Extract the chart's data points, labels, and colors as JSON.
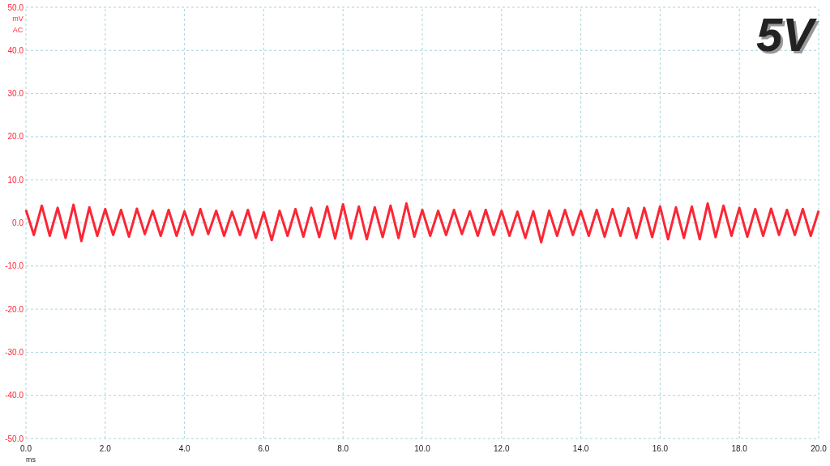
{
  "chart_data": {
    "type": "line",
    "title": "5V",
    "xlabel": "ms",
    "ylabel": "mV AC",
    "xlim": [
      0,
      20
    ],
    "ylim": [
      -50,
      50
    ],
    "xticks": [
      {
        "value": 0,
        "label": "0.0"
      },
      {
        "value": 2,
        "label": "2.0"
      },
      {
        "value": 4,
        "label": "4.0"
      },
      {
        "value": 6,
        "label": "6.0"
      },
      {
        "value": 8,
        "label": "8.0"
      },
      {
        "value": 10,
        "label": "10.0"
      },
      {
        "value": 12,
        "label": "12.0"
      },
      {
        "value": 14,
        "label": "14.0"
      },
      {
        "value": 16,
        "label": "16.0"
      },
      {
        "value": 18,
        "label": "18.0"
      },
      {
        "value": 20,
        "label": "20.0"
      }
    ],
    "yticks": [
      {
        "value": -50,
        "label": "-50.0"
      },
      {
        "value": -40,
        "label": "-40.0"
      },
      {
        "value": -30,
        "label": "-30.0"
      },
      {
        "value": -20,
        "label": "-20.0"
      },
      {
        "value": -10,
        "label": "-10.0"
      },
      {
        "value": 0,
        "label": "0.0"
      },
      {
        "value": 10,
        "label": "10.0"
      },
      {
        "value": 20,
        "label": "20.0"
      },
      {
        "value": 30,
        "label": "30.0"
      },
      {
        "value": 40,
        "label": "40.0"
      },
      {
        "value": 50,
        "label": "50.0"
      }
    ],
    "grid": true,
    "marker": "none",
    "line_style": "solid",
    "series": [
      {
        "color": "#fc2635",
        "x": [
          0,
          0.2,
          0.4,
          0.6,
          0.8,
          1,
          1.2,
          1.4,
          1.6,
          1.8,
          2,
          2.2,
          2.4,
          2.6,
          2.8,
          3,
          3.2,
          3.4,
          3.6,
          3.8,
          4,
          4.2,
          4.4,
          4.6,
          4.8,
          5,
          5.2,
          5.4,
          5.6,
          5.8,
          6,
          6.2,
          6.4,
          6.6,
          6.8,
          7,
          7.2,
          7.4,
          7.6,
          7.8,
          8,
          8.2,
          8.4,
          8.6,
          8.8,
          9,
          9.2,
          9.4,
          9.6,
          9.8,
          10,
          10.2,
          10.4,
          10.6,
          10.8,
          11,
          11.2,
          11.4,
          11.6,
          11.8,
          12,
          12.2,
          12.4,
          12.6,
          12.8,
          13,
          13.2,
          13.4,
          13.6,
          13.8,
          14,
          14.2,
          14.4,
          14.6,
          14.8,
          15,
          15.2,
          15.4,
          15.6,
          15.8,
          16,
          16.2,
          16.4,
          16.6,
          16.8,
          17,
          17.2,
          17.4,
          17.6,
          17.8,
          18,
          18.2,
          18.4,
          18.6,
          18.8,
          19,
          19.2,
          19.4,
          19.6,
          19.8,
          20
        ],
        "values": [
          3.0,
          -2.8,
          4.0,
          -3.0,
          3.5,
          -3.5,
          4.2,
          -4.2,
          3.6,
          -3.0,
          3.2,
          -2.8,
          3.0,
          -3.2,
          3.3,
          -2.6,
          2.8,
          -3.0,
          3.0,
          -3.0,
          2.7,
          -2.8,
          3.2,
          -2.6,
          2.8,
          -3.0,
          2.6,
          -2.8,
          3.0,
          -3.5,
          2.5,
          -4.0,
          2.8,
          -3.0,
          3.2,
          -3.2,
          3.5,
          -3.3,
          3.8,
          -3.6,
          4.3,
          -3.6,
          3.8,
          -3.8,
          3.6,
          -3.3,
          4.0,
          -3.5,
          4.5,
          -3.2,
          3.0,
          -3.0,
          2.8,
          -2.8,
          3.0,
          -2.6,
          2.7,
          -3.0,
          3.0,
          -2.8,
          2.8,
          -3.0,
          2.6,
          -3.5,
          2.7,
          -4.5,
          2.8,
          -3.0,
          3.0,
          -2.8,
          2.8,
          -3.0,
          3.0,
          -3.2,
          3.2,
          -3.0,
          3.4,
          -3.5,
          3.5,
          -3.3,
          3.8,
          -3.8,
          3.6,
          -3.5,
          3.8,
          -3.8,
          4.5,
          -3.3,
          4.0,
          -3.0,
          3.5,
          -3.2,
          3.2,
          -3.0,
          3.3,
          -2.8,
          3.0,
          -2.8,
          3.2,
          -3.0,
          2.8
        ]
      }
    ]
  }
}
